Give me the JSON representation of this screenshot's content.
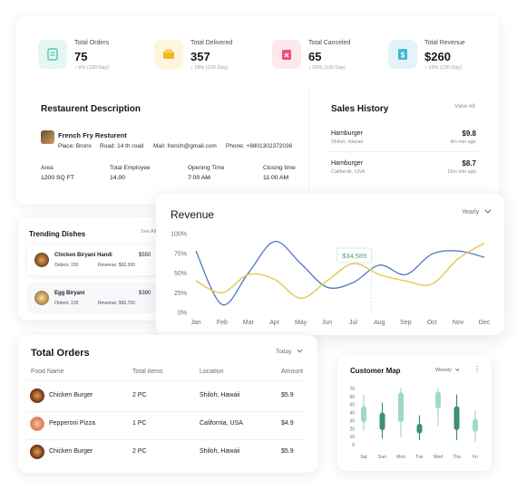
{
  "stats": [
    {
      "label": "Total Orders",
      "value": "75",
      "change": "6% (130 Day)",
      "arrow": "↑",
      "icon": "document-icon",
      "bg": "#e6f6f3",
      "fg": "#55c5b0"
    },
    {
      "label": "Total Delivered",
      "value": "357",
      "change": "18% (130 Day)",
      "arrow": "↑",
      "icon": "box-icon",
      "bg": "#fff5df",
      "fg": "#f3b81d"
    },
    {
      "label": "Total Canceled",
      "value": "65",
      "change": "20% (130 Day)",
      "arrow": "↓",
      "icon": "cancel-bag-icon",
      "bg": "#fde8ee",
      "fg": "#ef4a78"
    },
    {
      "label": "Total Revenue",
      "value": "$260",
      "change": "16% (130 Day)",
      "arrow": "↑",
      "icon": "revenue-icon",
      "bg": "#e2f4f9",
      "fg": "#3fb6d3"
    }
  ],
  "restaurant": {
    "title": "Restaurent Description",
    "name": "French Fry Resturent",
    "place": "Place: Bronx",
    "road": "Road: 14 th road",
    "mail": "Mail: french@gmail.com",
    "phone": "Phone: +8801302372036",
    "cols": [
      {
        "label": "Area",
        "value": "1200 SQ FT"
      },
      {
        "label": "Total Employee",
        "value": "14,00"
      },
      {
        "label": "Opening Time",
        "value": "7:00 AM"
      },
      {
        "label": "Closing time",
        "value": "11:00 AM"
      }
    ]
  },
  "sales": {
    "title": "Sales History",
    "view_all": "View All",
    "items": [
      {
        "name": "Hamburger",
        "place": "Shiloh, Hawaii",
        "price": "$9.8",
        "time": "4m min ago"
      },
      {
        "name": "Hamburger",
        "place": "Californik, USA",
        "price": "$8.7",
        "time": "16m min ago"
      }
    ]
  },
  "trending": {
    "title": "Trending Dishes",
    "see_all": "See All",
    "items": [
      {
        "name": "Chicken Biryani Handi",
        "orders": "Orders: 150",
        "revenue": "Revenue: $92,300",
        "price": "$550"
      },
      {
        "name": "Egg Biryani",
        "orders": "Orders: 130",
        "revenue": "Revenue: $56,700",
        "price": "$390"
      }
    ]
  },
  "revenue": {
    "title": "Revenue",
    "filter": "Yearly",
    "tooltip": "$34,589",
    "colors": {
      "blue": "#5b7fc9",
      "yellow": "#e3c84a",
      "green": "#4aa36f"
    }
  },
  "chart_data": {
    "type": "line",
    "x": [
      "Jan",
      "Feb",
      "Mar",
      "Apr",
      "May",
      "Jun",
      "Jul",
      "Aug",
      "Sep",
      "Oct",
      "Nov",
      "Dec"
    ],
    "y_ticks": [
      "100%",
      "75%",
      "50%",
      "25%",
      "0%"
    ],
    "ylim": [
      0,
      100
    ],
    "series": [
      {
        "values": [
          78,
          10,
          50,
          90,
          62,
          32,
          38,
          60,
          48,
          74,
          78,
          70
        ]
      },
      {
        "values": [
          40,
          25,
          48,
          42,
          18,
          40,
          62,
          48,
          40,
          36,
          68,
          88
        ]
      }
    ]
  },
  "orders": {
    "title": "Total Orders",
    "filter": "Today",
    "headers": [
      "Food Name",
      "Total items",
      "Location",
      "Amount"
    ],
    "rows": [
      {
        "food": "Chicken Burger",
        "items": "2 PC",
        "location": "Shiloh, Hawaii",
        "amount": "$5.9"
      },
      {
        "food": "Pepperoni Pizza",
        "items": "1 PC",
        "location": "California, USA",
        "amount": "$4.9"
      },
      {
        "food": "Chicken Burger",
        "items": "2 PC",
        "location": "Shiloh, Hawaii",
        "amount": "$5.9"
      }
    ]
  },
  "customer_map": {
    "title": "Customer Map",
    "filter": "Weekly",
    "y_ticks": [
      "70",
      "60",
      "50",
      "40",
      "30",
      "20",
      "10",
      "0"
    ],
    "days": [
      "Sat",
      "Sun",
      "Mon",
      "Tue",
      "Wed",
      "Thu",
      "Fri"
    ],
    "colors": {
      "light": "#9fd8cc",
      "dark": "#3f8f74"
    }
  },
  "customer_chart_data": {
    "type": "candlestick",
    "categories": [
      "Sat",
      "Sun",
      "Mon",
      "Tue",
      "Wed",
      "Thu",
      "Fri"
    ],
    "ylim": [
      0,
      70
    ],
    "candles": [
      {
        "low": 18,
        "high": 62,
        "open": 28,
        "close": 48,
        "dark": false
      },
      {
        "low": 8,
        "high": 52,
        "open": 18,
        "close": 40,
        "dark": true
      },
      {
        "low": 10,
        "high": 70,
        "open": 28,
        "close": 65,
        "dark": false
      },
      {
        "low": 6,
        "high": 36,
        "open": 14,
        "close": 26,
        "dark": true
      },
      {
        "low": 24,
        "high": 70,
        "open": 45,
        "close": 66,
        "dark": false
      },
      {
        "low": 6,
        "high": 62,
        "open": 18,
        "close": 48,
        "dark": true
      },
      {
        "low": 4,
        "high": 42,
        "open": 16,
        "close": 32,
        "dark": false
      }
    ]
  }
}
